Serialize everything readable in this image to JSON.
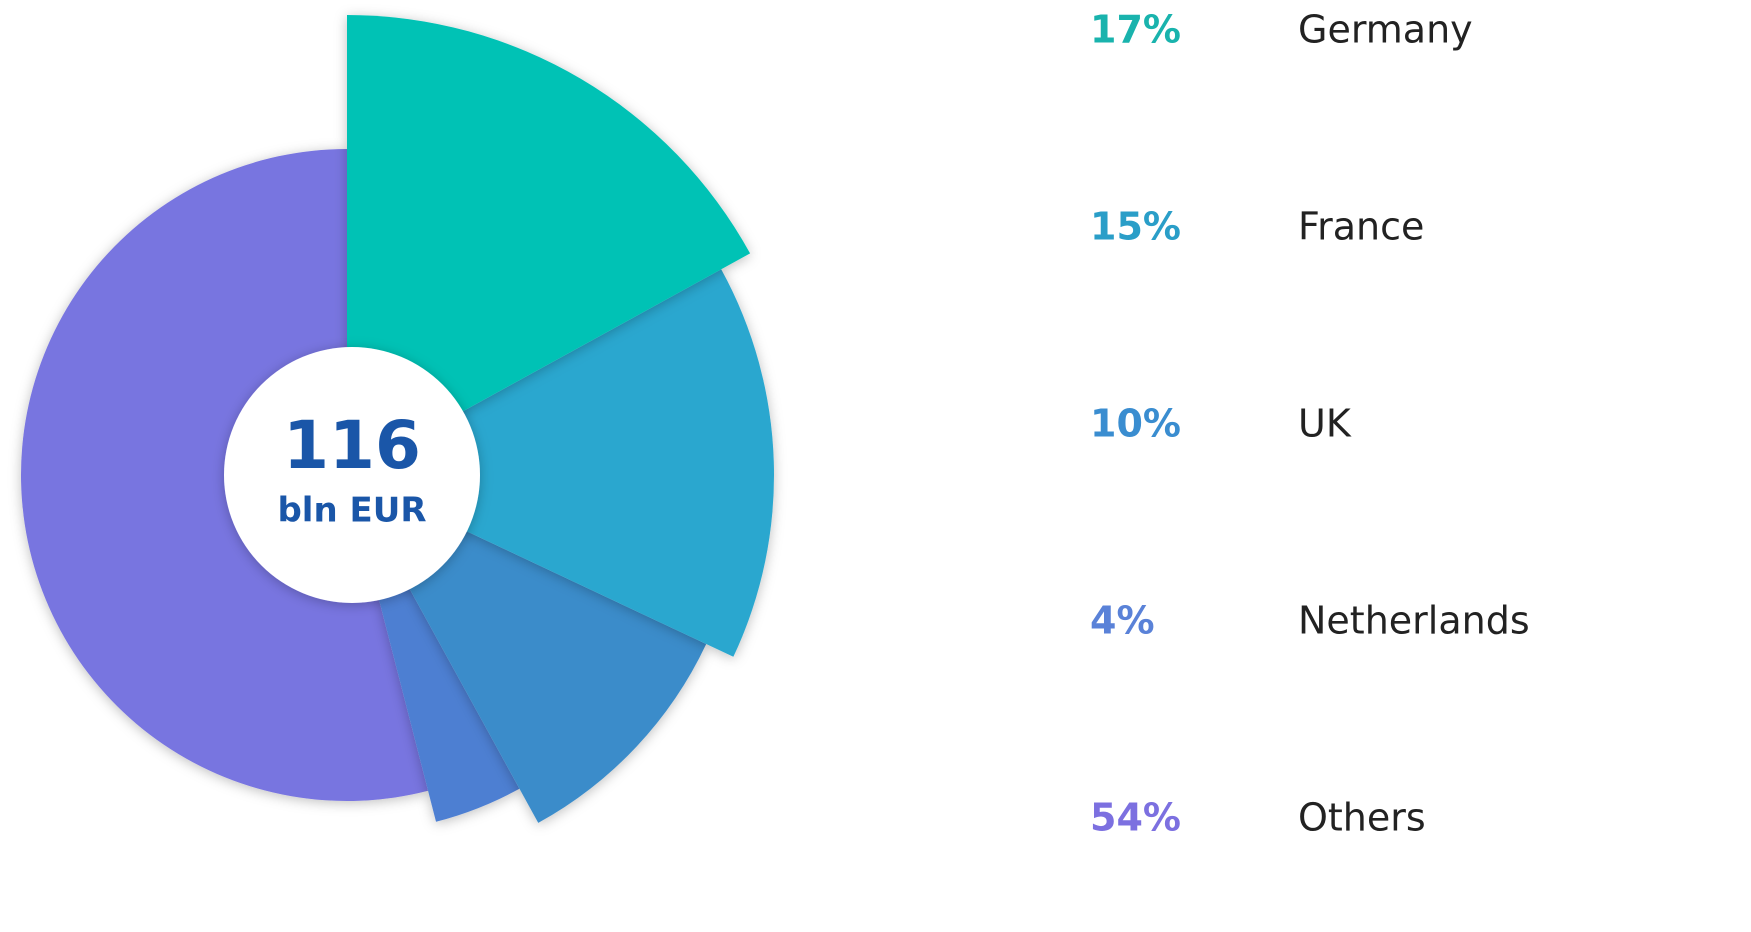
{
  "chart_data": {
    "type": "pie",
    "categories": [
      "Germany",
      "France",
      "UK",
      "Netherlands",
      "Others"
    ],
    "values": [
      17,
      15,
      10,
      4,
      54
    ],
    "value_labels": [
      "17%",
      "15%",
      "10%",
      "4%",
      "54%"
    ],
    "colors": [
      "#00c2b5",
      "#2aa7cf",
      "#3a8cca",
      "#4d7fd2",
      "#7874e0"
    ],
    "label_colors": [
      "#19b3ad",
      "#2a9ec8",
      "#3a8dd0",
      "#5a82d8",
      "#7c70e0"
    ],
    "total": 116,
    "total_unit": "bln EUR"
  }
}
